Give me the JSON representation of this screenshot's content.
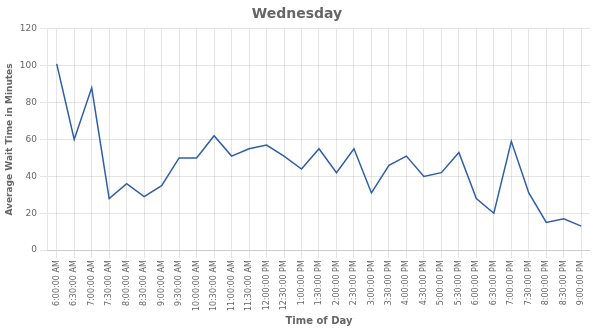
{
  "chart_data": {
    "type": "line",
    "title": "Wednesday",
    "xlabel": "Time of Day",
    "ylabel": "Average Wait Time in Minutes",
    "categories": [
      "6:00:00 AM",
      "6:30:00 AM",
      "7:00:00 AM",
      "7:30:00 AM",
      "8:00:00 AM",
      "8:30:00 AM",
      "9:00:00 AM",
      "9:30:00 AM",
      "10:00:00 AM",
      "10:30:00 AM",
      "11:00:00 AM",
      "11:30:00 AM",
      "12:00:00 PM",
      "12:30:00 PM",
      "1:00:00 PM",
      "1:30:00 PM",
      "2:00:00 PM",
      "2:30:00 PM",
      "3:00:00 PM",
      "3:30:00 PM",
      "4:00:00 PM",
      "4:30:00 PM",
      "5:00:00 PM",
      "5:30:00 PM",
      "6:00:00 PM",
      "6:30:00 PM",
      "7:00:00 PM",
      "7:30:00 PM",
      "8:00:00 PM",
      "8:30:00 PM",
      "9:00:00 PM"
    ],
    "values": [
      101,
      60,
      88,
      28,
      36,
      29,
      35,
      50,
      50,
      62,
      51,
      55,
      57,
      51,
      44,
      55,
      42,
      55,
      31,
      46,
      51,
      40,
      42,
      53,
      28,
      20,
      59,
      31,
      15,
      17,
      13
    ],
    "color": "#2E5EA8",
    "ylim": [
      0,
      120
    ],
    "yticks": [
      0,
      20,
      40,
      60,
      80,
      100,
      120
    ],
    "grid": true
  }
}
